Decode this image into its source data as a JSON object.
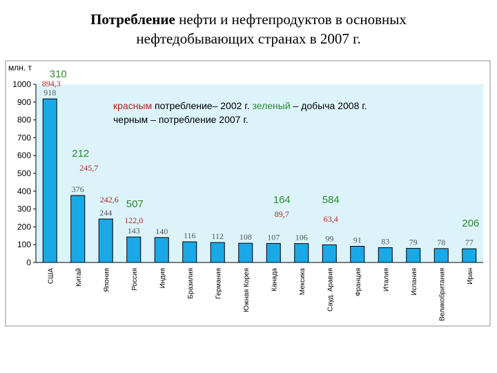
{
  "header": {
    "title_bold": "Потребление",
    "title_rest_line1": "нефти и нефтепродуктов в основных",
    "title_line2": "нефтедобывающих странах в 2007 г."
  },
  "chart_data": {
    "type": "bar",
    "ylabel": "млн. т",
    "ylim": [
      0,
      1000
    ],
    "yticks": [
      0,
      100,
      200,
      300,
      400,
      500,
      600,
      700,
      800,
      900,
      1000
    ],
    "categories": [
      "США",
      "Китай",
      "Япония",
      "Россия",
      "Индия",
      "Бразилия",
      "Германия",
      "Южная Корея",
      "Канада",
      "Мексика",
      "Сауд. Аравия",
      "Франция",
      "Италия",
      "Испания",
      "Великобритания",
      "Иран"
    ],
    "series": [
      {
        "name": "черным – потребление 2007 г.",
        "values": [
          918,
          376,
          244,
          143,
          140,
          116,
          112,
          108,
          107,
          106,
          99,
          91,
          83,
          79,
          78,
          77
        ]
      }
    ],
    "legend": {
      "red_word": "красным",
      "red_text": " потребление– 2002 г. ",
      "green_word": "зеленый",
      "green_text": " – добыча 2008 г.",
      "line2": "черным – потребление 2007 г."
    },
    "annotations": [
      {
        "text": "310",
        "color": "#2e8b2e"
      },
      {
        "text": "894,3",
        "color": "#b22222"
      },
      {
        "text": "212",
        "color": "#2e8b2e"
      },
      {
        "text": "245,7",
        "color": "#b22222"
      },
      {
        "text": "242,6",
        "color": "#b22222"
      },
      {
        "text": "507",
        "color": "#2e8b2e"
      },
      {
        "text": "122,0",
        "color": "#b22222"
      },
      {
        "text": "164",
        "color": "#2e8b2e"
      },
      {
        "text": "89,7",
        "color": "#b22222"
      },
      {
        "text": "584",
        "color": "#2e8b2e"
      },
      {
        "text": "63,4",
        "color": "#b22222"
      },
      {
        "text": "206",
        "color": "#2e8b2e"
      }
    ],
    "colors": {
      "plot_bg": "#dcf3f9",
      "bar": "#1aa9e6",
      "bar_edge": "#000000",
      "value_label": "#555555",
      "red": "#b22222",
      "green": "#2e8b2e"
    },
    "grid": false
  }
}
